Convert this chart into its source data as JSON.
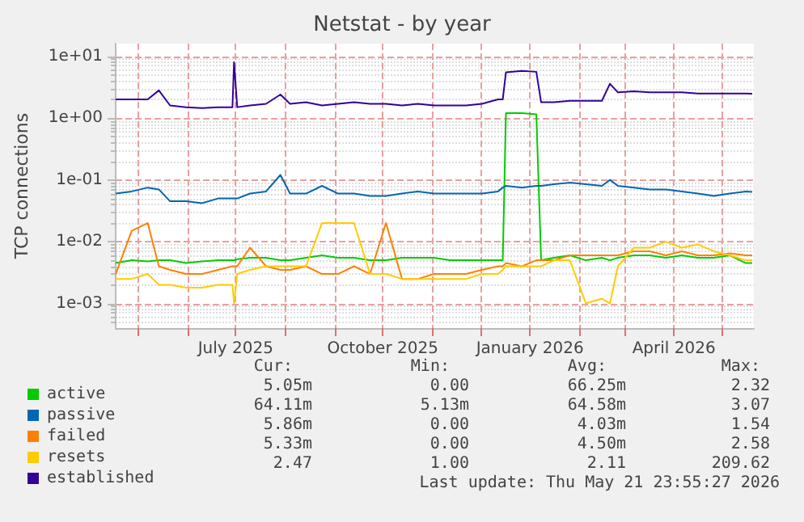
{
  "chart_data": {
    "type": "line",
    "title": "Netstat - by year",
    "ylabel": "TCP connections",
    "x": [
      "2025-04-17",
      "2025-04-27",
      "2025-05-07",
      "2025-05-14",
      "2025-05-21",
      "2025-05-31",
      "2025-06-10",
      "2025-06-20",
      "2025-06-29",
      "2025-06-30",
      "2025-07-02",
      "2025-07-10",
      "2025-07-20",
      "2025-07-29",
      "2025-08-04",
      "2025-08-14",
      "2025-08-24",
      "2025-09-03",
      "2025-09-13",
      "2025-09-23",
      "2025-10-03",
      "2025-10-13",
      "2025-10-23",
      "2025-11-02",
      "2025-11-12",
      "2025-11-22",
      "2025-12-02",
      "2025-12-12",
      "2025-12-15",
      "2025-12-17",
      "2025-12-27",
      "2026-01-05",
      "2026-01-08",
      "2026-01-16",
      "2026-01-26",
      "2026-02-05",
      "2026-02-15",
      "2026-02-20",
      "2026-02-25",
      "2026-03-07",
      "2026-03-17",
      "2026-03-27",
      "2026-04-06",
      "2026-04-16",
      "2026-04-26",
      "2026-05-06",
      "2026-05-16",
      "2026-05-20"
    ],
    "series": [
      {
        "name": "active",
        "color": "#00cc00",
        "values": [
          0.0045,
          0.005,
          0.0048,
          0.005,
          0.005,
          0.0045,
          0.0048,
          0.005,
          0.005,
          0.005,
          0.0052,
          0.0055,
          0.0055,
          0.005,
          0.005,
          0.0055,
          0.006,
          0.0055,
          0.0055,
          0.005,
          0.005,
          0.0055,
          0.0055,
          0.0055,
          0.005,
          0.005,
          0.005,
          0.005,
          0.005,
          1.2,
          1.2,
          1.15,
          0.005,
          0.0055,
          0.006,
          0.005,
          0.0055,
          0.005,
          0.0055,
          0.006,
          0.006,
          0.0055,
          0.006,
          0.0055,
          0.0055,
          0.006,
          0.0045,
          0.0045
        ]
      },
      {
        "name": "passive",
        "color": "#0066b3",
        "values": [
          0.06,
          0.065,
          0.075,
          0.07,
          0.045,
          0.045,
          0.042,
          0.05,
          0.05,
          0.05,
          0.05,
          0.06,
          0.065,
          0.12,
          0.06,
          0.06,
          0.08,
          0.06,
          0.06,
          0.055,
          0.055,
          0.06,
          0.065,
          0.06,
          0.06,
          0.06,
          0.06,
          0.065,
          0.075,
          0.08,
          0.075,
          0.08,
          0.08,
          0.085,
          0.09,
          0.085,
          0.08,
          0.1,
          0.08,
          0.075,
          0.07,
          0.07,
          0.065,
          0.06,
          0.055,
          0.06,
          0.065,
          0.064
        ]
      },
      {
        "name": "failed",
        "color": "#ff8000",
        "values": [
          0.003,
          0.015,
          0.02,
          0.004,
          0.0035,
          0.003,
          0.003,
          0.0035,
          0.004,
          0.004,
          0.004,
          0.008,
          0.004,
          0.0035,
          0.0035,
          0.004,
          0.003,
          0.003,
          0.004,
          0.003,
          0.02,
          0.0025,
          0.0025,
          0.003,
          0.003,
          0.003,
          0.0035,
          0.004,
          0.004,
          0.0045,
          0.004,
          0.005,
          0.005,
          0.005,
          0.006,
          0.006,
          0.006,
          0.006,
          0.006,
          0.007,
          0.007,
          0.006,
          0.007,
          0.006,
          0.006,
          0.0065,
          0.006,
          0.006
        ]
      },
      {
        "name": "resets",
        "color": "#ffcc00",
        "values": [
          0.0025,
          0.0025,
          0.003,
          0.002,
          0.002,
          0.0018,
          0.0018,
          0.002,
          0.002,
          0.001,
          0.003,
          0.0035,
          0.004,
          0.004,
          0.004,
          0.004,
          0.02,
          0.02,
          0.02,
          0.003,
          0.003,
          0.0025,
          0.0025,
          0.0025,
          0.0025,
          0.0025,
          0.003,
          0.003,
          0.0035,
          0.004,
          0.004,
          0.004,
          0.004,
          0.005,
          0.005,
          0.001,
          0.0012,
          0.001,
          0.004,
          0.008,
          0.008,
          0.01,
          0.008,
          0.009,
          0.007,
          0.006,
          0.005,
          0.005
        ]
      },
      {
        "name": "established",
        "color": "#330099",
        "values": [
          2.0,
          2.0,
          2.0,
          2.8,
          1.6,
          1.5,
          1.45,
          1.5,
          1.5,
          8.0,
          1.5,
          1.6,
          1.7,
          2.4,
          1.7,
          1.8,
          1.6,
          1.7,
          1.8,
          1.7,
          1.7,
          1.6,
          1.7,
          1.6,
          1.6,
          1.6,
          1.7,
          2.0,
          2.0,
          5.5,
          5.8,
          5.6,
          1.8,
          1.8,
          1.9,
          1.9,
          1.9,
          3.6,
          2.6,
          2.7,
          2.6,
          2.6,
          2.6,
          2.5,
          2.5,
          2.5,
          2.5,
          2.47
        ]
      }
    ],
    "log": "y",
    "ylim": [
      0.0004,
      16
    ],
    "yticks": [
      {
        "value": 0.001,
        "label": "1e-03"
      },
      {
        "value": 0.01,
        "label": "1e-02"
      },
      {
        "value": 0.1,
        "label": "1e-01"
      },
      {
        "value": 1,
        "label": "1e+00"
      },
      {
        "value": 10,
        "label": "1e+01"
      }
    ],
    "xlim": [
      "2025-04-17",
      "2026-05-21"
    ],
    "xticks": [
      {
        "value": "2025-05-01",
        "label": null
      },
      {
        "value": "2025-06-01",
        "label": null
      },
      {
        "value": "2025-07-01",
        "label": "July 2025"
      },
      {
        "value": "2025-08-01",
        "label": null
      },
      {
        "value": "2025-09-01",
        "label": null
      },
      {
        "value": "2025-10-01",
        "label": "October 2025"
      },
      {
        "value": "2025-11-01",
        "label": null
      },
      {
        "value": "2025-12-01",
        "label": null
      },
      {
        "value": "2026-01-01",
        "label": "January 2026"
      },
      {
        "value": "2026-02-01",
        "label": null
      },
      {
        "value": "2026-03-01",
        "label": null
      },
      {
        "value": "2026-04-01",
        "label": "April 2026"
      },
      {
        "value": "2026-05-01",
        "label": null
      }
    ],
    "grid": true,
    "legend": "bottom left",
    "marker": "none",
    "line_style": "solid",
    "annotations": [
      "Cur:",
      "Min:",
      "Avg:",
      "Max:",
      "5.05m",
      "0.00",
      "66.25m",
      "2.32",
      "64.11m",
      "5.13m",
      "64.58m",
      "3.07",
      "5.86m",
      "0.00",
      "4.03m",
      "1.54",
      "5.33m",
      "0.00",
      "4.50m",
      "2.58",
      "2.47",
      "1.00",
      "2.11",
      "209.62",
      "Last update: Thu May 21 23:55:27 2026"
    ]
  }
}
